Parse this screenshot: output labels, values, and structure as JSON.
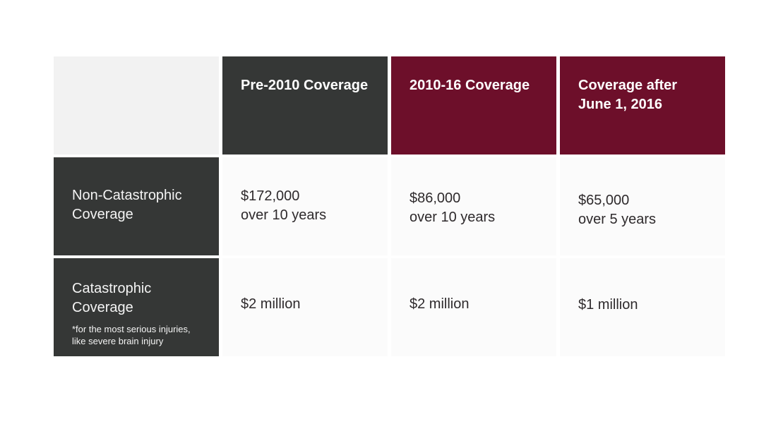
{
  "table": {
    "headers": [
      [
        "Pre-2010 Coverage"
      ],
      [
        "2010-16 Coverage"
      ],
      [
        "Coverage after",
        "June 1, 2016"
      ]
    ],
    "rows": [
      {
        "label": [
          "Non-Catastrophic",
          "Coverage"
        ],
        "cells": [
          [
            "$172,000",
            "over 10 years"
          ],
          [
            "$86,000",
            "over 10 years"
          ],
          [
            "$65,000",
            "over 5 years"
          ]
        ]
      },
      {
        "label": [
          "Catastrophic",
          "Coverage"
        ],
        "note": [
          "*for the most serious injuries,",
          "like severe brain injury"
        ],
        "cells": [
          [
            "$2 million"
          ],
          [
            "$2 million"
          ],
          [
            "$1 million"
          ]
        ]
      }
    ]
  }
}
